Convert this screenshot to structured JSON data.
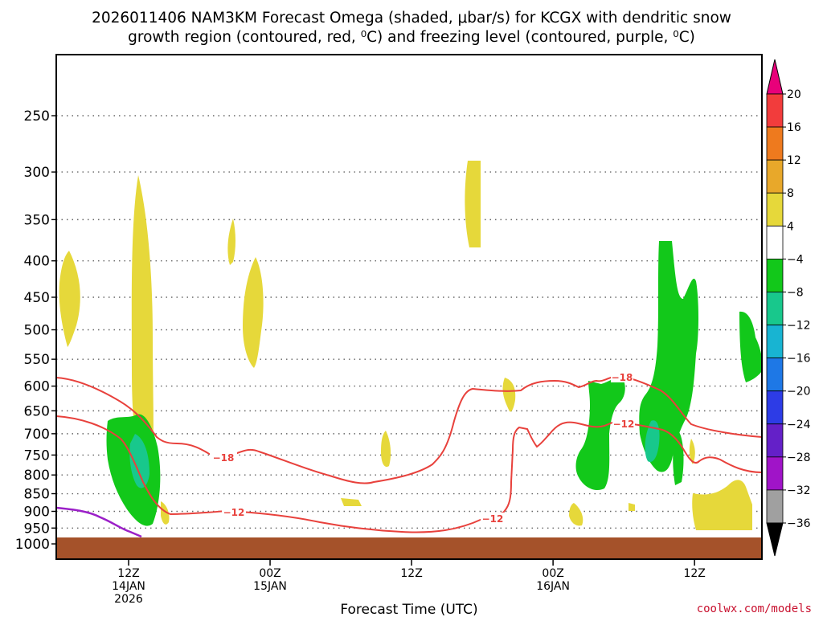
{
  "chart_data": {
    "type": "time-height cross section",
    "title_line1": "2026011406 NAM3KM Forecast Omega (shaded, μbar/s) for KCGX with dendritic snow",
    "title_line2": "growth region (contoured, red, ⁰C) and freezing level (contoured, purple, ⁰C)",
    "xlabel": "Forecast Time (UTC)",
    "y_ticks": [
      "250",
      "300",
      "350",
      "400",
      "450",
      "500",
      "550",
      "600",
      "650",
      "700",
      "750",
      "800",
      "850",
      "900",
      "950",
      "1000"
    ],
    "x_ticks": [
      {
        "hour": 6,
        "line1": "12Z",
        "line2": "14JAN",
        "line3": "2026"
      },
      {
        "hour": 18,
        "line1": "00Z",
        "line2": "15JAN",
        "line3": ""
      },
      {
        "hour": 30,
        "line1": "12Z",
        "line2": "",
        "line3": ""
      },
      {
        "hour": 42,
        "line1": "00Z",
        "line2": "16JAN",
        "line3": ""
      },
      {
        "hour": 54,
        "line1": "12Z",
        "line2": "",
        "line3": ""
      }
    ],
    "colorbar": {
      "labels": [
        "20",
        "16",
        "12",
        "8",
        "4",
        "−4",
        "−8",
        "−12",
        "−16",
        "−20",
        "−24",
        "−28",
        "−32",
        "−36"
      ],
      "colors": [
        "#e8007a",
        "#f23c3c",
        "#ee7a1e",
        "#e8a82a",
        "#e6d83a",
        "#ffffff",
        "#12c81a",
        "#18c88c",
        "#18b4d2",
        "#1e78e6",
        "#2d3ce6",
        "#6420c8",
        "#a014c8",
        "#a0a0a0",
        "#000000"
      ]
    },
    "contour_labels": [
      "−18",
      "−12",
      "−18",
      "−12",
      "−12"
    ],
    "colors": {
      "dgz": "#e8413c",
      "freezing": "#9b1fc8",
      "ground": "#a5522a",
      "up_weak": "#e6d83a",
      "down_weak": "#12c81a",
      "down_mod": "#18c88c"
    }
  },
  "credit": "coolwx.com/models"
}
